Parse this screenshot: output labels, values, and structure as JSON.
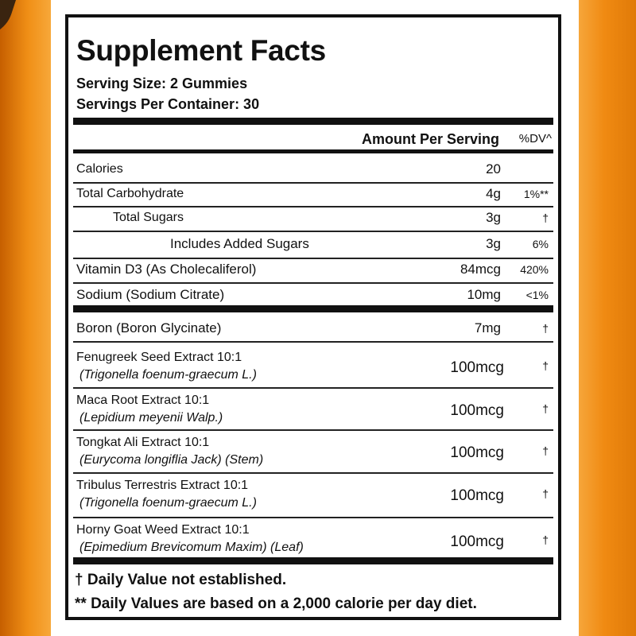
{
  "title": "Supplement Facts",
  "serving_size": "Serving Size: 2 Gummies",
  "servings_per_container": "Servings Per Container: 30",
  "header": {
    "amount": "Amount Per Serving",
    "dv": "%DV^"
  },
  "nutrients": [
    {
      "name": "Calories",
      "amount": "20",
      "dv": ""
    },
    {
      "name": "Total Carbohydrate",
      "amount": "4g",
      "dv": "1%**"
    },
    {
      "name": "Total Sugars",
      "amount": "3g",
      "dv": "†"
    },
    {
      "name": "Includes Added Sugars",
      "amount": "3g",
      "dv": "6%"
    },
    {
      "name": "Vitamin D3 (As Cholecaliferol)",
      "amount": "84mcg",
      "dv": "420%"
    },
    {
      "name": "Sodium (Sodium Citrate)",
      "amount": "10mg",
      "dv": "<1%"
    }
  ],
  "ingredients": [
    {
      "name": "Boron (Boron Glycinate)",
      "latin": "",
      "amount": "7mg",
      "dv": "†"
    },
    {
      "name": "Fenugreek Seed Extract 10:1",
      "latin": "(Trigonella foenum-graecum L.)",
      "amount": "100mcg",
      "dv": "†"
    },
    {
      "name": "Maca Root Extract 10:1",
      "latin": "(Lepidium meyenii Walp.)",
      "amount": "100mcg",
      "dv": "†"
    },
    {
      "name": "Tongkat Ali Extract 10:1",
      "latin": "(Eurycoma longiflia Jack) (Stem)",
      "amount": "100mcg",
      "dv": "†"
    },
    {
      "name": "Tribulus Terrestris Extract 10:1",
      "latin": "(Trigonella foenum-graecum L.)",
      "amount": "100mcg",
      "dv": "†"
    },
    {
      "name": "Horny Goat Weed Extract 10:1",
      "latin": "(Epimedium Brevicomum Maxim) (Leaf)",
      "amount": "100mcg",
      "dv": "†"
    }
  ],
  "footnotes": [
    "† Daily Value not established.",
    "** Daily Values are based on a 2,000 calorie per day diet."
  ]
}
